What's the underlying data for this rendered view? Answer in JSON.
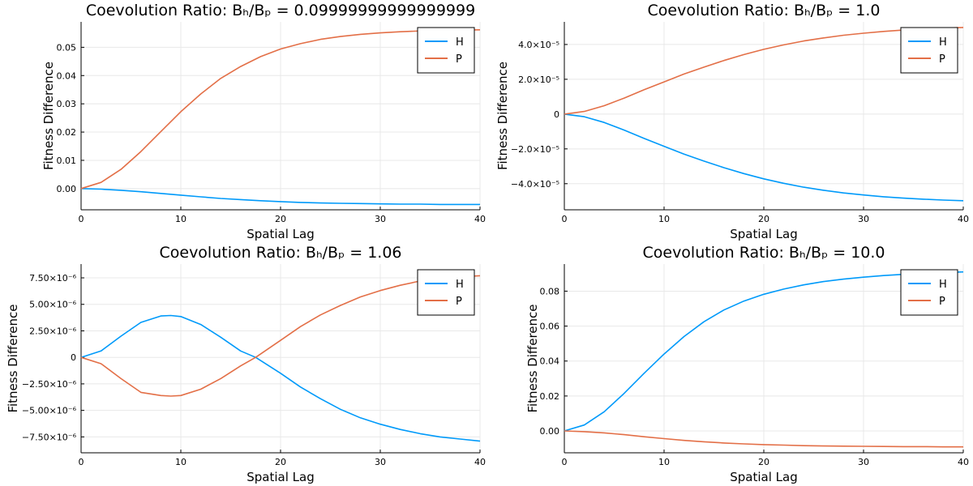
{
  "chart_data": [
    {
      "type": "line",
      "title": "Coevolution Ratio: Bₕ/Bₚ = 0.09999999999999999",
      "xlabel": "Spatial Lag",
      "ylabel": "Fitness Difference",
      "xlim": [
        0,
        40
      ],
      "ylim": [
        -0.0075,
        0.059
      ],
      "xticks": [
        {
          "v": 0,
          "label": "0"
        },
        {
          "v": 10,
          "label": "10"
        },
        {
          "v": 20,
          "label": "20"
        },
        {
          "v": 30,
          "label": "30"
        },
        {
          "v": 40,
          "label": "40"
        }
      ],
      "yticks": [
        {
          "v": 0.0,
          "label": "0.00"
        },
        {
          "v": 0.01,
          "label": "0.01"
        },
        {
          "v": 0.02,
          "label": "0.02"
        },
        {
          "v": 0.03,
          "label": "0.03"
        },
        {
          "v": 0.04,
          "label": "0.04"
        },
        {
          "v": 0.05,
          "label": "0.05"
        }
      ],
      "grid": true,
      "legend": "top-right",
      "x": [
        0,
        2,
        4,
        6,
        8,
        10,
        12,
        14,
        16,
        18,
        20,
        22,
        24,
        26,
        28,
        30,
        32,
        34,
        36,
        38,
        40
      ],
      "series": [
        {
          "name": "H",
          "color": "#009AFA",
          "values": [
            0,
            -0.0002,
            -0.0006,
            -0.0011,
            -0.0017,
            -0.0023,
            -0.0029,
            -0.0035,
            -0.0039,
            -0.0043,
            -0.0046,
            -0.0049,
            -0.0051,
            -0.0052,
            -0.0053,
            -0.0054,
            -0.0055,
            -0.0055,
            -0.0056,
            -0.0056,
            -0.0056
          ]
        },
        {
          "name": "P",
          "color": "#E36F47",
          "values": [
            0,
            0.0022,
            0.0068,
            0.0131,
            0.0202,
            0.0272,
            0.0335,
            0.039,
            0.0432,
            0.0467,
            0.0494,
            0.0513,
            0.0528,
            0.0538,
            0.0546,
            0.0551,
            0.0555,
            0.0558,
            0.056,
            0.0561,
            0.0562
          ]
        }
      ]
    },
    {
      "type": "line",
      "title": "Coevolution Ratio: Bₕ/Bₚ = 1.0",
      "xlabel": "Spatial Lag",
      "ylabel": "Fitness Difference",
      "xlim": [
        0,
        40
      ],
      "ylim": [
        -5.5e-05,
        5.3e-05
      ],
      "xticks": [
        {
          "v": 0,
          "label": "0"
        },
        {
          "v": 10,
          "label": "10"
        },
        {
          "v": 20,
          "label": "20"
        },
        {
          "v": 30,
          "label": "30"
        },
        {
          "v": 40,
          "label": "40"
        }
      ],
      "yticks": [
        {
          "v": -4e-05,
          "label": "−4.0×10⁻⁵"
        },
        {
          "v": -2e-05,
          "label": "−2.0×10⁻⁵"
        },
        {
          "v": 0,
          "label": "0"
        },
        {
          "v": 2e-05,
          "label": "2.0×10⁻⁵"
        },
        {
          "v": 4e-05,
          "label": "4.0×10⁻⁵"
        }
      ],
      "grid": true,
      "legend": "top-right",
      "x": [
        0,
        2,
        4,
        6,
        8,
        10,
        12,
        14,
        16,
        18,
        20,
        22,
        24,
        26,
        28,
        30,
        32,
        34,
        36,
        38,
        40
      ],
      "series": [
        {
          "name": "H",
          "color": "#009AFA",
          "values": [
            0,
            -1.5e-06,
            -4.8e-06,
            -9.2e-06,
            -1.4e-05,
            -1.85e-05,
            -2.3e-05,
            -2.7e-05,
            -3.08e-05,
            -3.42e-05,
            -3.72e-05,
            -3.98e-05,
            -4.2e-05,
            -4.38e-05,
            -4.53e-05,
            -4.65e-05,
            -4.75e-05,
            -4.83e-05,
            -4.89e-05,
            -4.94e-05,
            -4.98e-05
          ]
        },
        {
          "name": "P",
          "color": "#E36F47",
          "values": [
            0,
            1.5e-06,
            4.8e-06,
            9.2e-06,
            1.4e-05,
            1.85e-05,
            2.3e-05,
            2.7e-05,
            3.08e-05,
            3.42e-05,
            3.72e-05,
            3.98e-05,
            4.2e-05,
            4.38e-05,
            4.53e-05,
            4.65e-05,
            4.75e-05,
            4.83e-05,
            4.89e-05,
            4.94e-05,
            4.98e-05
          ]
        }
      ]
    },
    {
      "type": "line",
      "title": "Coevolution Ratio: Bₕ/Bₚ = 1.06",
      "xlabel": "Spatial Lag",
      "ylabel": "Fitness Difference",
      "xlim": [
        0,
        40
      ],
      "ylim": [
        -9e-06,
        8.8e-06
      ],
      "xticks": [
        {
          "v": 0,
          "label": "0"
        },
        {
          "v": 10,
          "label": "10"
        },
        {
          "v": 20,
          "label": "20"
        },
        {
          "v": 30,
          "label": "30"
        },
        {
          "v": 40,
          "label": "40"
        }
      ],
      "yticks": [
        {
          "v": -7.5e-06,
          "label": "−7.50×10⁻⁶"
        },
        {
          "v": -5e-06,
          "label": "−5.00×10⁻⁶"
        },
        {
          "v": -2.5e-06,
          "label": "−2.50×10⁻⁶"
        },
        {
          "v": 0,
          "label": "0"
        },
        {
          "v": 2.5e-06,
          "label": "2.50×10⁻⁶"
        },
        {
          "v": 5e-06,
          "label": "5.00×10⁻⁶"
        },
        {
          "v": 7.5e-06,
          "label": "7.50×10⁻⁶"
        }
      ],
      "grid": true,
      "legend": "top-right",
      "x": [
        0,
        2,
        4,
        6,
        8,
        9,
        10,
        12,
        14,
        16,
        17.5,
        20,
        22,
        24,
        26,
        28,
        30,
        32,
        34,
        36,
        38,
        40
      ],
      "series": [
        {
          "name": "H",
          "color": "#009AFA",
          "values": [
            0,
            6e-07,
            2e-06,
            3.3e-06,
            3.9e-06,
            3.95e-06,
            3.85e-06,
            3.1e-06,
            1.9e-06,
            6e-07,
            0,
            -1.5e-06,
            -2.8e-06,
            -3.9e-06,
            -4.9e-06,
            -5.7e-06,
            -6.3e-06,
            -6.8e-06,
            -7.2e-06,
            -7.5e-06,
            -7.7e-06,
            -7.9e-06
          ]
        },
        {
          "name": "P",
          "color": "#E36F47",
          "values": [
            0,
            -6e-07,
            -2e-06,
            -3.3e-06,
            -3.6e-06,
            -3.65e-06,
            -3.6e-06,
            -3e-06,
            -2e-06,
            -8e-07,
            0,
            1.6e-06,
            2.9e-06,
            4e-06,
            4.9e-06,
            5.7e-06,
            6.3e-06,
            6.8e-06,
            7.2e-06,
            7.4e-06,
            7.6e-06,
            7.7e-06
          ]
        }
      ]
    },
    {
      "type": "line",
      "title": "Coevolution Ratio: Bₕ/Bₚ = 10.0",
      "xlabel": "Spatial Lag",
      "ylabel": "Fitness Difference",
      "xlim": [
        0,
        40
      ],
      "ylim": [
        -0.0125,
        0.0955
      ],
      "xticks": [
        {
          "v": 0,
          "label": "0"
        },
        {
          "v": 10,
          "label": "10"
        },
        {
          "v": 20,
          "label": "20"
        },
        {
          "v": 30,
          "label": "30"
        },
        {
          "v": 40,
          "label": "40"
        }
      ],
      "yticks": [
        {
          "v": 0.0,
          "label": "0.00"
        },
        {
          "v": 0.02,
          "label": "0.02"
        },
        {
          "v": 0.04,
          "label": "0.04"
        },
        {
          "v": 0.06,
          "label": "0.06"
        },
        {
          "v": 0.08,
          "label": "0.08"
        }
      ],
      "grid": true,
      "legend": "top-right",
      "x": [
        0,
        2,
        4,
        6,
        8,
        10,
        12,
        14,
        16,
        18,
        20,
        22,
        24,
        26,
        28,
        30,
        32,
        34,
        36,
        38,
        40
      ],
      "series": [
        {
          "name": "H",
          "color": "#009AFA",
          "values": [
            0,
            0.0034,
            0.011,
            0.0215,
            0.033,
            0.044,
            0.054,
            0.0625,
            0.0692,
            0.0743,
            0.0782,
            0.0812,
            0.0836,
            0.0855,
            0.0869,
            0.088,
            0.0889,
            0.0896,
            0.0902,
            0.0907,
            0.091
          ]
        },
        {
          "name": "P",
          "color": "#E36F47",
          "values": [
            0,
            -0.0004,
            -0.0011,
            -0.0021,
            -0.0033,
            -0.0044,
            -0.0054,
            -0.0062,
            -0.0069,
            -0.0074,
            -0.0078,
            -0.0081,
            -0.0084,
            -0.0086,
            -0.0087,
            -0.0088,
            -0.0089,
            -0.009,
            -0.009,
            -0.0091,
            -0.0091
          ]
        }
      ]
    }
  ]
}
